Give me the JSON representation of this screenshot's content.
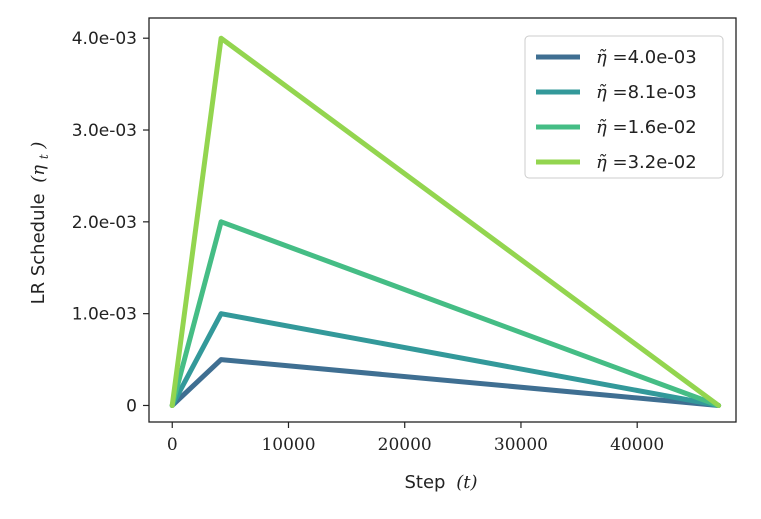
{
  "chart_data": {
    "type": "line",
    "xlabel": "Step",
    "xlabel_var": "(t)",
    "ylabel": "LR Schedule",
    "ylabel_var": "(η",
    "ylabel_sub": "t",
    "ylabel_close": ")",
    "xlim": [
      -2000,
      48500
    ],
    "ylim": [
      -0.00018,
      0.00422
    ],
    "xticks": [
      0,
      10000,
      20000,
      30000,
      40000
    ],
    "xtick_labels": [
      "0",
      "10000",
      "20000",
      "30000",
      "40000"
    ],
    "yticks": [
      0,
      0.001,
      0.002,
      0.003,
      0.004
    ],
    "ytick_labels": [
      "0",
      "1.0e-03",
      "2.0e-03",
      "3.0e-03",
      "4.0e-03"
    ],
    "grid": false,
    "legend_position": "top-right",
    "legend_prefix": "η̃ =",
    "series": [
      {
        "name": "4.0e-03",
        "color": "#3f6f92",
        "x": [
          0,
          4200,
          47000
        ],
        "y": [
          0,
          0.0005,
          0
        ]
      },
      {
        "name": "8.1e-03",
        "color": "#33999a",
        "x": [
          0,
          4200,
          47000
        ],
        "y": [
          0,
          0.001,
          0
        ]
      },
      {
        "name": "1.6e-02",
        "color": "#45bd85",
        "x": [
          0,
          4200,
          47000
        ],
        "y": [
          0,
          0.002,
          0
        ]
      },
      {
        "name": "3.2e-02",
        "color": "#93d54f",
        "x": [
          0,
          4200,
          47000
        ],
        "y": [
          0,
          0.004,
          0
        ]
      }
    ]
  }
}
